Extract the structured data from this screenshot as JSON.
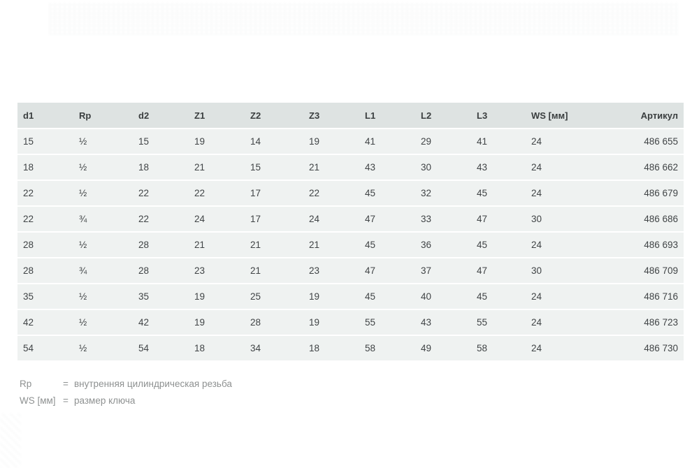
{
  "colors": {
    "header_bg": "#dee3e2",
    "row_bg": "#eff2f1",
    "header_text": "#3a3e3f",
    "cell_text": "#404446",
    "legend_text": "#8e9191",
    "page_bg": "#ffffff"
  },
  "table": {
    "columns": [
      "d1",
      "Rp",
      "d2",
      "Z1",
      "Z2",
      "Z3",
      "L1",
      "L2",
      "L3",
      "WS [мм]",
      "Артикул"
    ],
    "rows": [
      [
        "15",
        "½",
        "15",
        "19",
        "14",
        "19",
        "41",
        "29",
        "41",
        "24",
        "486 655"
      ],
      [
        "18",
        "½",
        "18",
        "21",
        "15",
        "21",
        "43",
        "30",
        "43",
        "24",
        "486 662"
      ],
      [
        "22",
        "½",
        "22",
        "22",
        "17",
        "22",
        "45",
        "32",
        "45",
        "24",
        "486 679"
      ],
      [
        "22",
        "¾",
        "22",
        "24",
        "17",
        "24",
        "47",
        "33",
        "47",
        "30",
        "486 686"
      ],
      [
        "28",
        "½",
        "28",
        "21",
        "21",
        "21",
        "45",
        "36",
        "45",
        "24",
        "486 693"
      ],
      [
        "28",
        "¾",
        "28",
        "23",
        "21",
        "23",
        "47",
        "37",
        "47",
        "30",
        "486 709"
      ],
      [
        "35",
        "½",
        "35",
        "19",
        "25",
        "19",
        "45",
        "40",
        "45",
        "24",
        "486 716"
      ],
      [
        "42",
        "½",
        "42",
        "19",
        "28",
        "19",
        "55",
        "43",
        "55",
        "24",
        "486 723"
      ],
      [
        "54",
        "½",
        "54",
        "18",
        "34",
        "18",
        "58",
        "49",
        "58",
        "24",
        "486 730"
      ]
    ]
  },
  "legend": {
    "items": [
      {
        "term": "Rp",
        "eq": "=",
        "description": "внутренняя цилиндрическая резьба"
      },
      {
        "term": "WS [мм]",
        "eq": "=",
        "description": "размер ключа"
      }
    ]
  }
}
